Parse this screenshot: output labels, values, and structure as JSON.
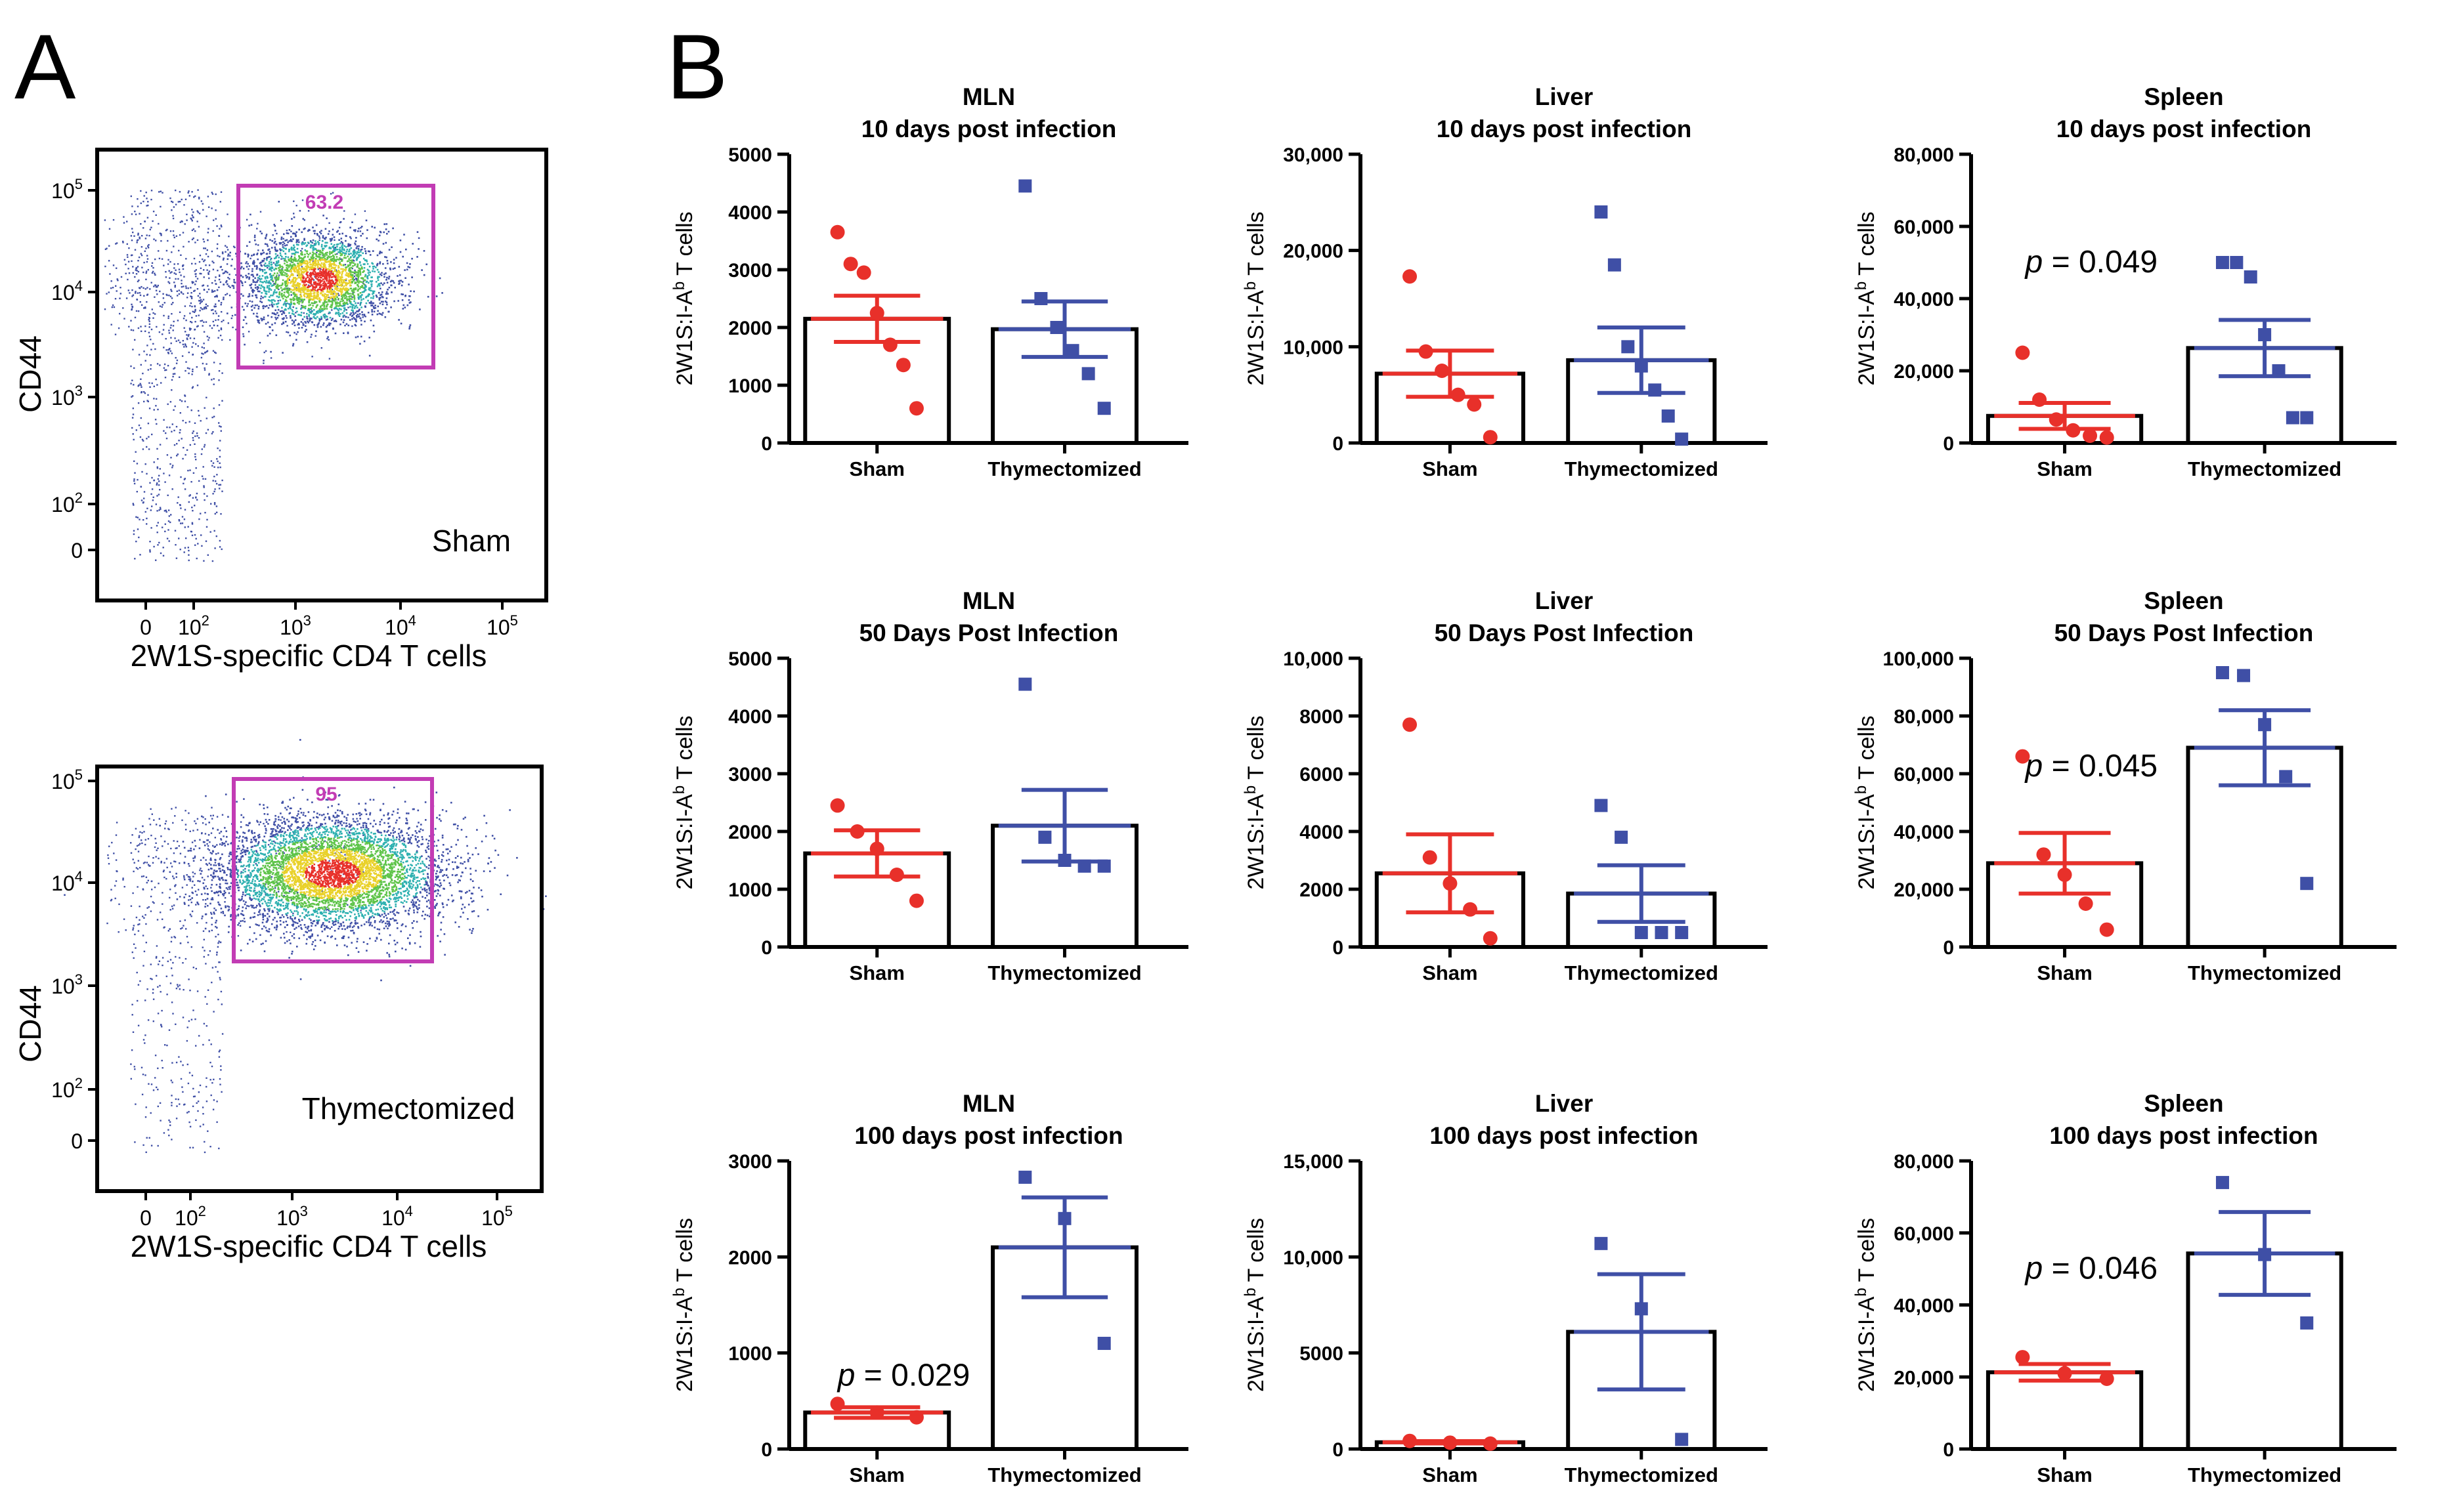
{
  "panel_labels": {
    "a": "A",
    "b": "B"
  },
  "colors": {
    "sham": "#e8302a",
    "thymectomized": "#3f4fa6",
    "gate": "#c23cb4",
    "text": "#000000"
  },
  "flow_plots": [
    {
      "id": "flow-sham",
      "sample_label": "Sham",
      "gate_percent": "63.2",
      "xlabel": "2W1S-specific CD4 T cells",
      "ylabel": "CD44",
      "x_ticks": [
        {
          "v": "0",
          "e": ""
        },
        {
          "v": "10",
          "e": "2"
        },
        {
          "v": "10",
          "e": "3"
        },
        {
          "v": "10",
          "e": "4"
        },
        {
          "v": "10",
          "e": "5"
        }
      ],
      "y_ticks": [
        {
          "v": "0",
          "e": ""
        },
        {
          "v": "10",
          "e": "2"
        },
        {
          "v": "10",
          "e": "3"
        },
        {
          "v": "10",
          "e": "4"
        },
        {
          "v": "10",
          "e": "5"
        }
      ]
    },
    {
      "id": "flow-thymectomized",
      "sample_label": "Thymectomized",
      "gate_percent": "95",
      "xlabel": "2W1S-specific CD4 T cells",
      "ylabel": "CD44",
      "x_ticks": [
        {
          "v": "0",
          "e": ""
        },
        {
          "v": "10",
          "e": "2"
        },
        {
          "v": "10",
          "e": "3"
        },
        {
          "v": "10",
          "e": "4"
        },
        {
          "v": "10",
          "e": "5"
        }
      ],
      "y_ticks": [
        {
          "v": "0",
          "e": ""
        },
        {
          "v": "10",
          "e": "2"
        },
        {
          "v": "10",
          "e": "3"
        },
        {
          "v": "10",
          "e": "4"
        },
        {
          "v": "10",
          "e": "5"
        }
      ]
    }
  ],
  "chart_data": [
    {
      "type": "bar",
      "title": [
        "MLN",
        "10 days post infection"
      ],
      "ylabel": "2W1S:I-A",
      "ylabel_sup": "b",
      "ylabel_tail": " T cells",
      "categories": [
        "Sham",
        "Thymectomized"
      ],
      "ylim": [
        0,
        5000
      ],
      "yticks": [
        0,
        1000,
        2000,
        3000,
        4000,
        5000
      ],
      "yticklabels": [
        "0",
        "1000",
        "2000",
        "3000",
        "4000",
        "5000"
      ],
      "means": [
        2150,
        1970
      ],
      "sem": [
        400,
        480
      ],
      "points": [
        [
          3650,
          3100,
          2950,
          2250,
          1700,
          1350,
          600
        ],
        [
          4450,
          2500,
          2000,
          1600,
          1200,
          600
        ]
      ],
      "pvalue": ""
    },
    {
      "type": "bar",
      "title": [
        "Liver",
        "10 days post infection"
      ],
      "ylabel": "2W1S:I-A",
      "ylabel_sup": "b",
      "ylabel_tail": " T cells",
      "categories": [
        "Sham",
        "Thymectomized"
      ],
      "ylim": [
        0,
        30000
      ],
      "yticks": [
        0,
        10000,
        20000,
        30000
      ],
      "yticklabels": [
        "0",
        "10,000",
        "20,000",
        "30,000"
      ],
      "means": [
        7200,
        8600
      ],
      "sem": [
        2400,
        3400
      ],
      "points": [
        [
          17300,
          9500,
          7500,
          5000,
          4000,
          600
        ],
        [
          24000,
          18500,
          10000,
          8000,
          5500,
          2800,
          400
        ]
      ],
      "pvalue": ""
    },
    {
      "type": "bar",
      "title": [
        "Spleen",
        "10 days post infection"
      ],
      "ylabel": "2W1S:I-A",
      "ylabel_sup": "b",
      "ylabel_tail": " T cells",
      "categories": [
        "Sham",
        "Thymectomized"
      ],
      "ylim": [
        0,
        80000
      ],
      "yticks": [
        0,
        20000,
        40000,
        60000,
        80000
      ],
      "yticklabels": [
        "0",
        "20,000",
        "40,000",
        "60,000",
        "80,000"
      ],
      "means": [
        7500,
        26300
      ],
      "sem": [
        3600,
        7800
      ],
      "points": [
        [
          25000,
          12000,
          6500,
          3500,
          2000,
          1500
        ],
        [
          50000,
          50000,
          46000,
          30000,
          20000,
          7000,
          7000
        ]
      ],
      "pvalue": "p = 0.049"
    },
    {
      "type": "bar",
      "title": [
        "MLN",
        "50 Days Post Infection"
      ],
      "ylabel": "2W1S:I-A",
      "ylabel_sup": "b",
      "ylabel_tail": " T cells",
      "categories": [
        "Sham",
        "Thymectomized"
      ],
      "ylim": [
        0,
        5000
      ],
      "yticks": [
        0,
        1000,
        2000,
        3000,
        4000,
        5000
      ],
      "yticklabels": [
        "0",
        "1000",
        "2000",
        "3000",
        "4000",
        "5000"
      ],
      "means": [
        1620,
        2100
      ],
      "sem": [
        400,
        620
      ],
      "points": [
        [
          2450,
          2000,
          1700,
          1250,
          800
        ],
        [
          4550,
          1900,
          1500,
          1400,
          1400
        ]
      ],
      "pvalue": ""
    },
    {
      "type": "bar",
      "title": [
        "Liver",
        "50 Days Post Infection"
      ],
      "ylabel": "2W1S:I-A",
      "ylabel_sup": "b",
      "ylabel_tail": " T cells",
      "categories": [
        "Sham",
        "Thymectomized"
      ],
      "ylim": [
        0,
        10000
      ],
      "yticks": [
        0,
        2000,
        4000,
        6000,
        8000,
        10000
      ],
      "yticklabels": [
        "0",
        "2000",
        "4000",
        "6000",
        "8000",
        "10,000"
      ],
      "means": [
        2550,
        1850
      ],
      "sem": [
        1350,
        980
      ],
      "points": [
        [
          7700,
          3100,
          2200,
          1300,
          300
        ],
        [
          4900,
          3800,
          500,
          500,
          500
        ]
      ],
      "pvalue": ""
    },
    {
      "type": "bar",
      "title": [
        "Spleen",
        "50 Days Post Infection"
      ],
      "ylabel": "2W1S:I-A",
      "ylabel_sup": "b",
      "ylabel_tail": " T cells",
      "categories": [
        "Sham",
        "Thymectomized"
      ],
      "ylim": [
        0,
        100000
      ],
      "yticks": [
        0,
        20000,
        40000,
        60000,
        80000,
        100000
      ],
      "yticklabels": [
        "0",
        "20,000",
        "40,000",
        "60,000",
        "80,000",
        "100,000"
      ],
      "means": [
        29000,
        69000
      ],
      "sem": [
        10500,
        13000
      ],
      "points": [
        [
          66000,
          32000,
          25000,
          15000,
          6000
        ],
        [
          95000,
          94000,
          77000,
          59000,
          22000
        ]
      ],
      "pvalue": "p = 0.045"
    },
    {
      "type": "bar",
      "title": [
        "MLN",
        "100 days post infection"
      ],
      "ylabel": "2W1S:I-A",
      "ylabel_sup": "b",
      "ylabel_tail": " T cells",
      "categories": [
        "Sham",
        "Thymectomized"
      ],
      "ylim": [
        0,
        3000
      ],
      "yticks": [
        0,
        1000,
        2000,
        3000
      ],
      "yticklabels": [
        "0",
        "1000",
        "2000",
        "3000"
      ],
      "means": [
        380,
        2100
      ],
      "sem": [
        55,
        520
      ],
      "points": [
        [
          470,
          380,
          330
        ],
        [
          2830,
          2400,
          1100
        ]
      ],
      "pvalue": "p = 0.029"
    },
    {
      "type": "bar",
      "title": [
        "Liver",
        "100 days post infection"
      ],
      "ylabel": "2W1S:I-A",
      "ylabel_sup": "b",
      "ylabel_tail": " T cells",
      "categories": [
        "Sham",
        "Thymectomized"
      ],
      "ylim": [
        0,
        15000
      ],
      "yticks": [
        0,
        5000,
        10000,
        15000
      ],
      "yticklabels": [
        "0",
        "5000",
        "10,000",
        "15,000"
      ],
      "means": [
        350,
        6100
      ],
      "sem": [
        60,
        3000
      ],
      "points": [
        [
          420,
          330,
          280
        ],
        [
          10700,
          7300,
          500
        ]
      ],
      "pvalue": ""
    },
    {
      "type": "bar",
      "title": [
        "Spleen",
        "100 days post infection"
      ],
      "ylabel": "2W1S:I-A",
      "ylabel_sup": "b",
      "ylabel_tail": " T cells",
      "categories": [
        "Sham",
        "Thymectomized"
      ],
      "ylim": [
        0,
        80000
      ],
      "yticks": [
        0,
        20000,
        40000,
        60000,
        80000
      ],
      "yticklabels": [
        "0",
        "20,000",
        "40,000",
        "60,000",
        "80,000"
      ],
      "means": [
        21300,
        54300
      ],
      "sem": [
        2300,
        11500
      ],
      "points": [
        [
          25500,
          21000,
          19500
        ],
        [
          74000,
          54000,
          35000
        ]
      ],
      "pvalue": "p = 0.046"
    }
  ]
}
